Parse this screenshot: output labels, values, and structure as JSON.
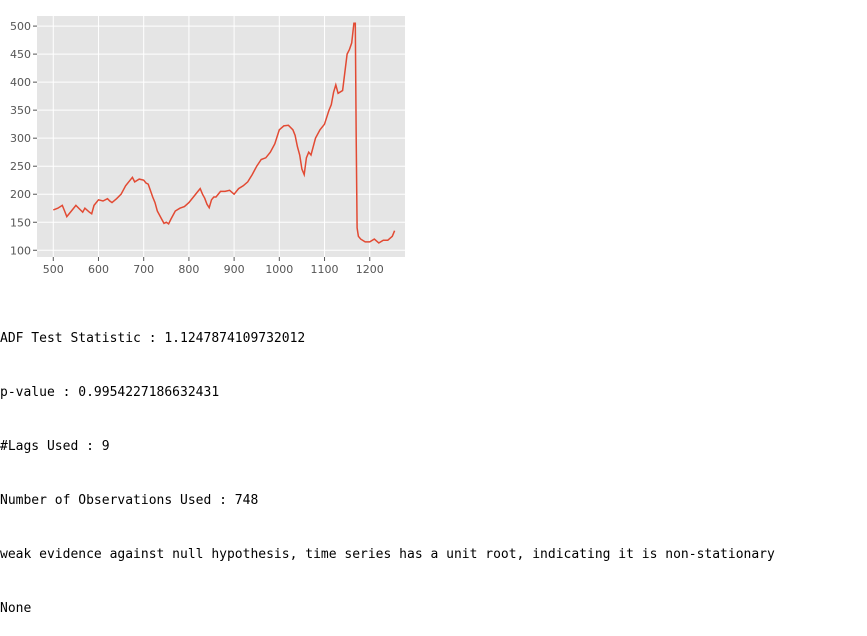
{
  "chart_data": {
    "type": "line",
    "title": "",
    "xlabel": "",
    "ylabel": "",
    "xlim": [
      464,
      1278
    ],
    "ylim": [
      88,
      518
    ],
    "xticks": [
      500,
      600,
      700,
      800,
      900,
      1000,
      1100,
      1200
    ],
    "yticks": [
      100,
      150,
      200,
      250,
      300,
      350,
      400,
      450,
      500
    ],
    "grid": true,
    "background": "#e5e5e5",
    "line_color": "#e24a33",
    "series": [
      {
        "x": [
          500,
          510,
          520,
          525,
          530,
          540,
          550,
          560,
          565,
          570,
          580,
          585,
          590,
          600,
          610,
          620,
          625,
          630,
          640,
          650,
          660,
          670,
          675,
          680,
          690,
          700,
          705,
          710,
          720,
          725,
          730,
          740,
          745,
          750,
          755,
          760,
          770,
          780,
          790,
          800,
          810,
          820,
          825,
          830,
          835,
          840,
          845,
          850,
          855,
          860,
          870,
          880,
          890,
          900,
          910,
          920,
          930,
          940,
          950,
          960,
          970,
          980,
          990,
          1000,
          1010,
          1020,
          1030,
          1035,
          1040,
          1045,
          1050,
          1055,
          1060,
          1065,
          1070,
          1080,
          1090,
          1100,
          1110,
          1115,
          1120,
          1125,
          1130,
          1140,
          1150,
          1155,
          1160,
          1165,
          1168,
          1170,
          1172,
          1175,
          1180,
          1190,
          1200,
          1210,
          1220,
          1230,
          1240,
          1250,
          1255
        ],
        "y": [
          172,
          175,
          180,
          170,
          160,
          170,
          180,
          172,
          168,
          175,
          168,
          165,
          180,
          190,
          188,
          192,
          188,
          185,
          192,
          200,
          215,
          225,
          230,
          222,
          227,
          225,
          220,
          218,
          195,
          185,
          170,
          155,
          148,
          150,
          147,
          155,
          170,
          175,
          178,
          185,
          195,
          205,
          210,
          200,
          193,
          182,
          176,
          190,
          195,
          195,
          205,
          205,
          207,
          200,
          210,
          215,
          222,
          235,
          250,
          262,
          265,
          275,
          290,
          315,
          322,
          323,
          315,
          305,
          285,
          270,
          245,
          235,
          265,
          275,
          270,
          300,
          315,
          325,
          350,
          360,
          382,
          395,
          380,
          385,
          450,
          458,
          470,
          505,
          505,
          300,
          140,
          125,
          120,
          115,
          115,
          120,
          113,
          118,
          118,
          125,
          135
        ]
      }
    ]
  },
  "output_lines": [
    "ADF Test Statistic : 1.1247874109732012",
    "p-value : 0.9954227186632431",
    "#Lags Used : 9",
    "Number of Observations Used : 748",
    "weak evidence against null hypothesis, time series has a unit root, indicating it is non-stationary",
    "None"
  ]
}
